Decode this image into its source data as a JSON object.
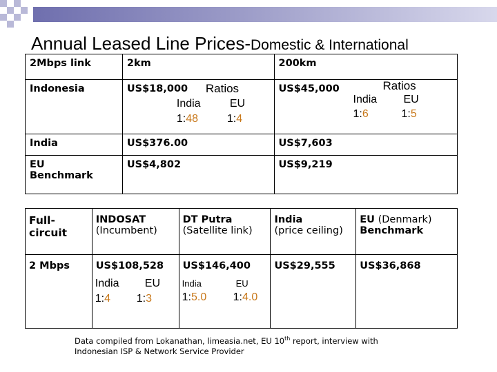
{
  "title": {
    "main": "Annual Leased Line Prices-",
    "sub": "Domestic & International"
  },
  "table1": {
    "headers": [
      "2Mbps link",
      "2km",
      "200km"
    ],
    "indonesia": {
      "label": "Indonesia",
      "price_2km": "US$18,000",
      "price_200km": "US$45,000",
      "ratios_2km": {
        "label": "Ratios",
        "india_label": "India",
        "eu_label": "EU",
        "india_prefix": "1:",
        "india_value": "48",
        "eu_prefix": "1:",
        "eu_value": "4"
      },
      "ratios_200km": {
        "label": "Ratios",
        "india_label": "India",
        "eu_label": "EU",
        "india_prefix": "1:",
        "india_value": "6",
        "eu_prefix": "1:",
        "eu_value": "5"
      }
    },
    "india": {
      "label": "India",
      "price_2km": "US$376.00",
      "price_200km": "US$7,603"
    },
    "eu": {
      "label_line1": "EU",
      "label_line2": "Benchmark",
      "price_2km": "US$4,802",
      "price_200km": "US$9,219"
    }
  },
  "table2": {
    "col0": {
      "line1": "Full-",
      "line2": "circuit"
    },
    "col1": {
      "line1": "INDOSAT",
      "line2": "(Incumbent)"
    },
    "col2": {
      "line1": "DT Putra",
      "line2": "(Satellite link)"
    },
    "col3": {
      "line1": "India",
      "line2": "(price ceiling)"
    },
    "col4": {
      "line1_bold": "EU",
      "line1_rest": " (Denmark)",
      "line2": "Benchmark"
    },
    "row_label": "2 Mbps",
    "indosat": {
      "price": "US$108,528",
      "india_label": "India",
      "eu_label": "EU",
      "india_prefix": "1:",
      "india_value": "4",
      "eu_prefix": "1:",
      "eu_value": "3"
    },
    "dtputra": {
      "price": "US$146,400",
      "india_label": "India",
      "eu_label": "EU",
      "india_prefix": "1:",
      "india_value": "5.0",
      "eu_prefix": "1:",
      "eu_value": "4.0"
    },
    "india_price": "US$29,555",
    "eu_price": "US$36,868"
  },
  "footnote": {
    "part1": "Data compiled from Lokanathan, limeasia.net, EU 10",
    "sup": "th",
    "part2": " report, interview with",
    "line2": "Indonesian ISP & Network  Service Provider"
  },
  "colors": {
    "accent": "#c8781a",
    "bar_start": "#6f6fae",
    "bar_end": "#d8d8ec"
  }
}
